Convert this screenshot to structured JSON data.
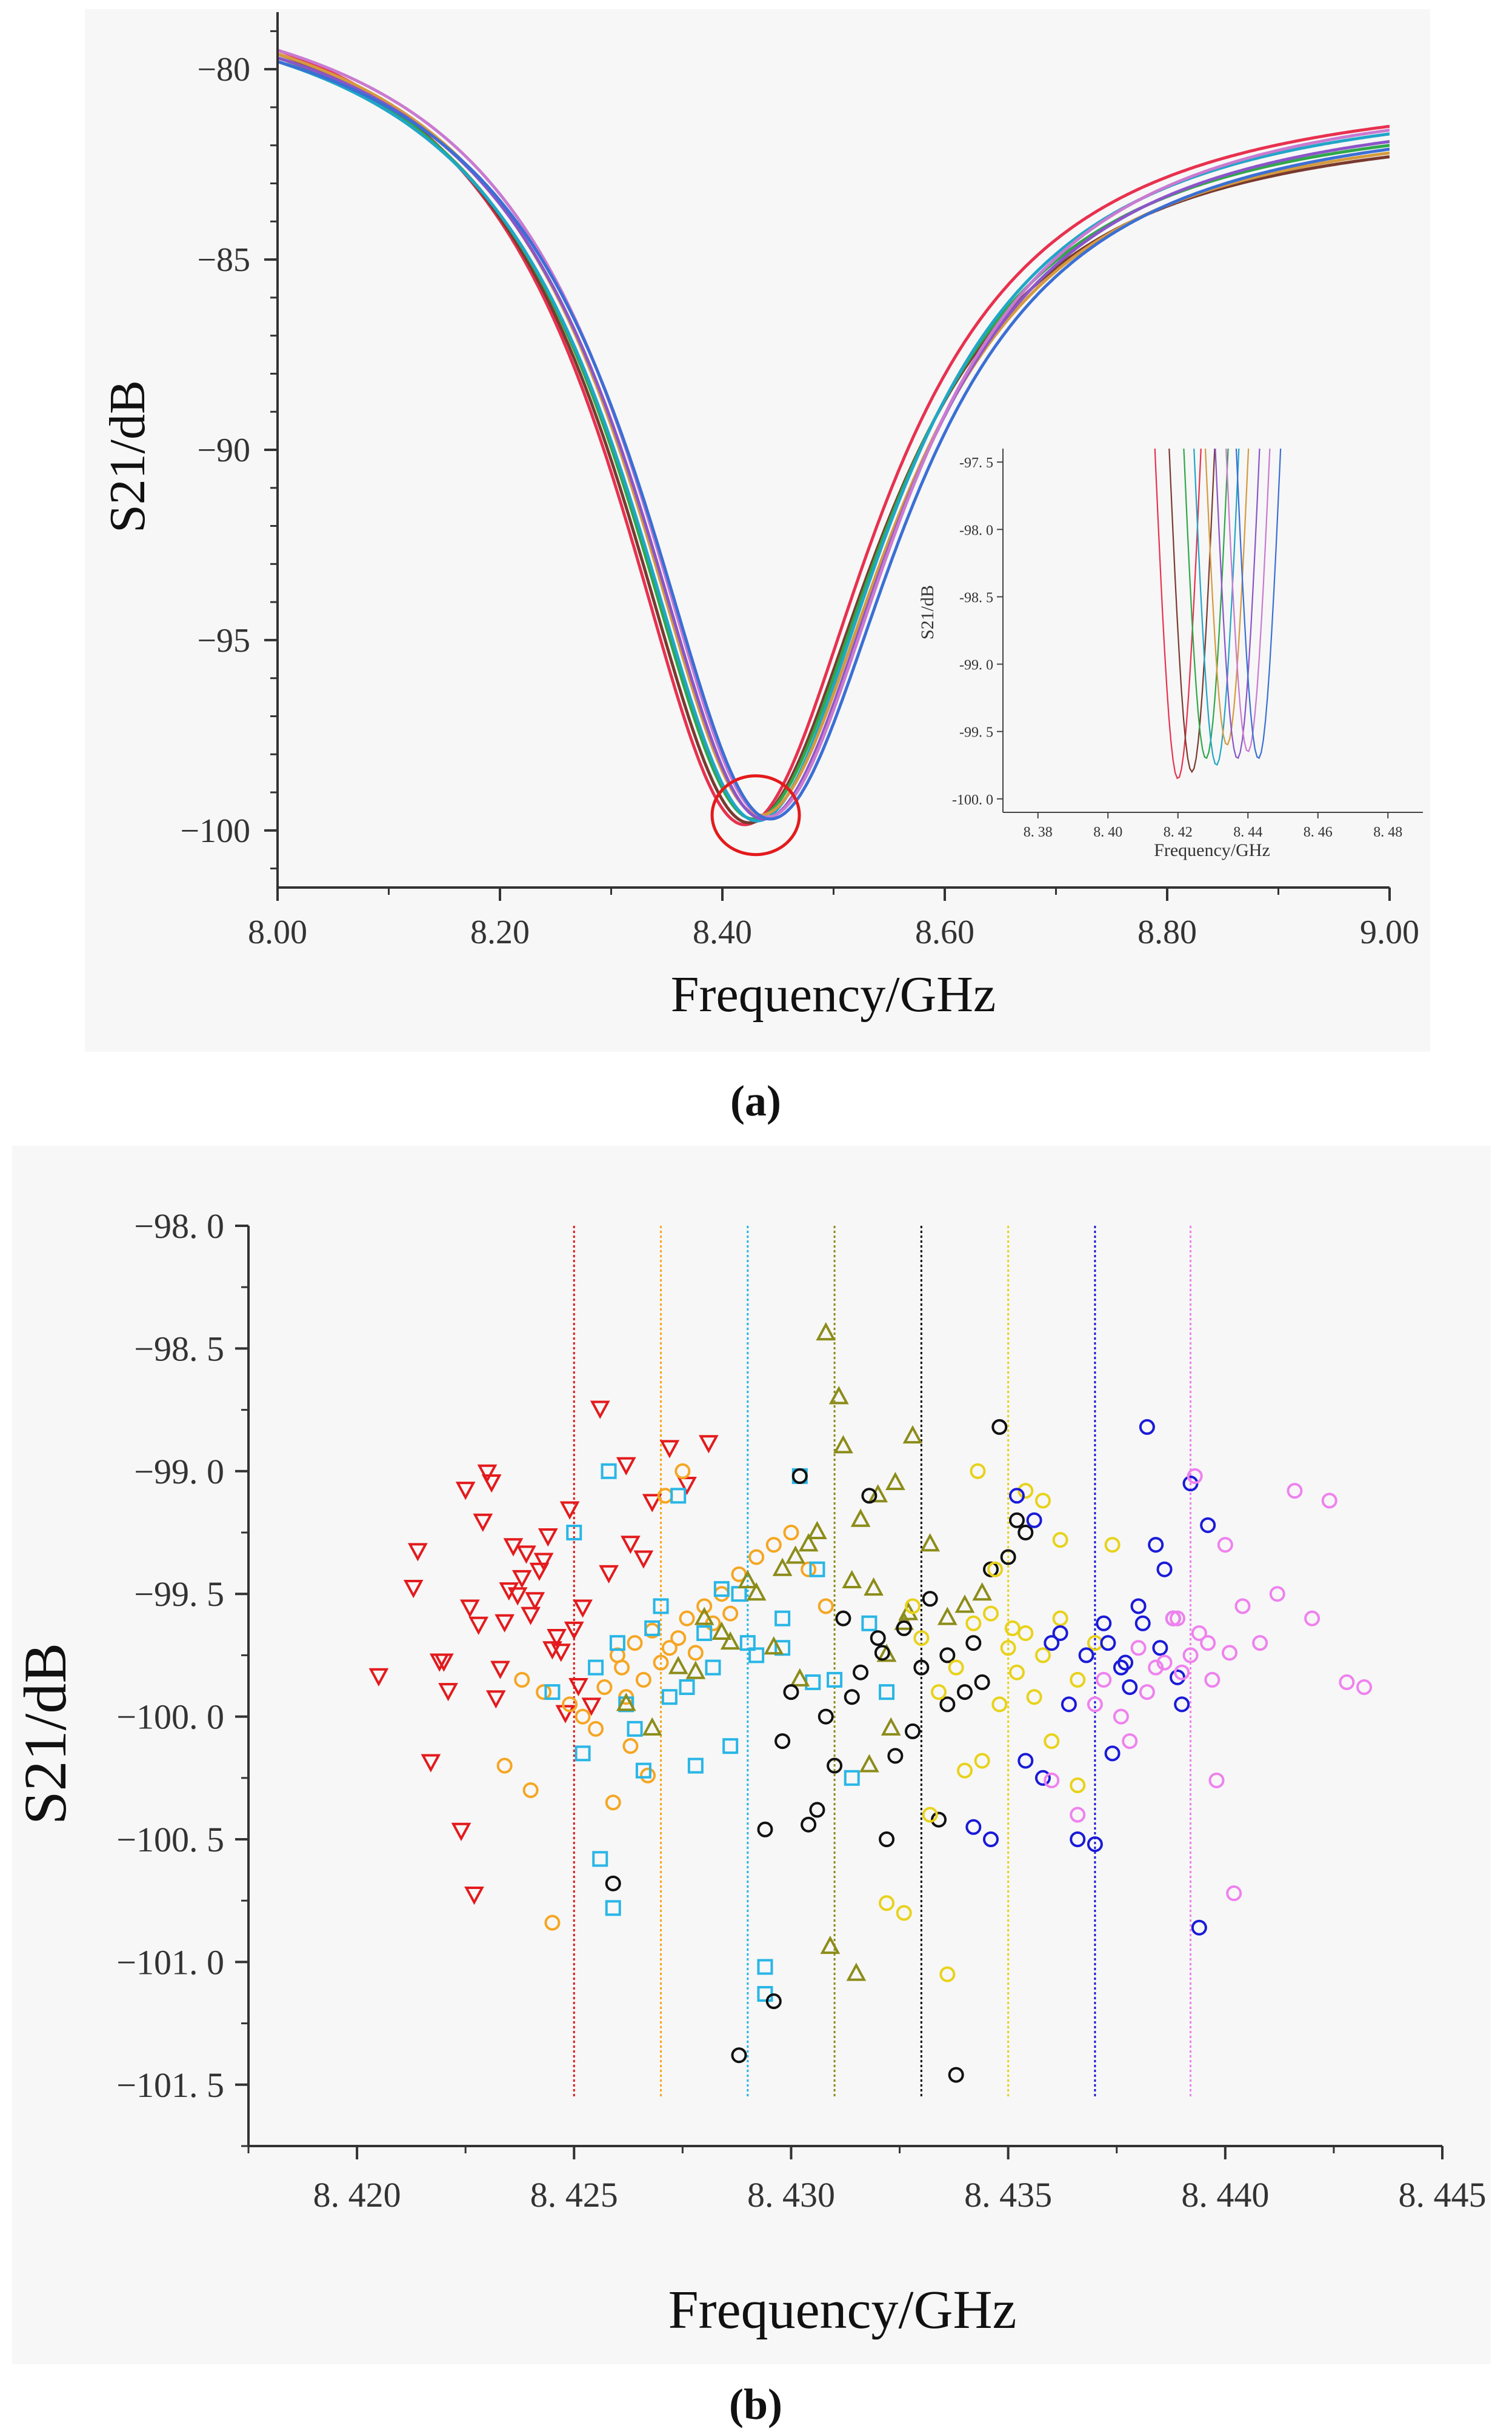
{
  "panel_labels": {
    "a": "(a)",
    "b": "(b)"
  },
  "chart_data": [
    {
      "id": "a",
      "type": "line",
      "xlabel": "Frequency/GHz",
      "ylabel": "S21/dB",
      "xlim": [
        8.0,
        9.0
      ],
      "ylim": [
        -101.5,
        -78.5
      ],
      "xticks": [
        8.0,
        8.2,
        8.4,
        8.6,
        8.8,
        9.0
      ],
      "xtick_labels": [
        "8.00",
        "8.20",
        "8.40",
        "8.60",
        "8.80",
        "9.00"
      ],
      "yticks": [
        -80,
        -85,
        -90,
        -95,
        -100
      ],
      "ytick_labels": [
        "−80",
        "−85",
        "−90",
        "−95",
        "−100"
      ],
      "annotation": {
        "type": "circle",
        "x": 8.43,
        "y": -99.6
      },
      "curve_model": {
        "gamma": 0.145,
        "edge": 8.0
      },
      "series": [
        {
          "color": "#e8314f",
          "x0": 8.42,
          "min": -99.85,
          "start": -79.5,
          "end": -81.5
        },
        {
          "color": "#7a3a2f",
          "x0": 8.424,
          "min": -99.8,
          "start": -79.6,
          "end": -82.3
        },
        {
          "color": "#2ea84a",
          "x0": 8.428,
          "min": -99.7,
          "start": -79.7,
          "end": -82.0
        },
        {
          "color": "#21a6c7",
          "x0": 8.431,
          "min": -99.75,
          "start": -79.8,
          "end": -81.7
        },
        {
          "color": "#d59a3f",
          "x0": 8.434,
          "min": -99.6,
          "start": -79.6,
          "end": -82.2
        },
        {
          "color": "#8b55c9",
          "x0": 8.437,
          "min": -99.7,
          "start": -79.7,
          "end": -81.9
        },
        {
          "color": "#c97ad0",
          "x0": 8.44,
          "min": -99.65,
          "start": -79.5,
          "end": -81.6
        },
        {
          "color": "#3b6fd4",
          "x0": 8.443,
          "min": -99.7,
          "start": -79.8,
          "end": -82.1
        }
      ],
      "inset": {
        "xlabel": "Frequency/GHz",
        "ylabel": "S21/dB",
        "xlim": [
          8.37,
          8.49
        ],
        "ylim": [
          -100.1,
          -97.4
        ],
        "xticks": [
          8.38,
          8.4,
          8.42,
          8.44,
          8.46,
          8.48
        ],
        "xtick_labels": [
          "8. 38",
          "8. 40",
          "8. 42",
          "8. 44",
          "8. 46",
          "8. 48"
        ],
        "yticks": [
          -97.5,
          -98.0,
          -98.5,
          -99.0,
          -99.5,
          -100.0
        ],
        "ytick_labels": [
          "-97. 5",
          "-98. 0",
          "-98. 5",
          "-99. 0",
          "-99. 5",
          "-100. 0"
        ],
        "curve_width": 0.013
      }
    },
    {
      "id": "b",
      "type": "scatter",
      "xlabel": "Frequency/GHz",
      "ylabel": "S21/dB",
      "xlim": [
        8.4175,
        8.445
      ],
      "ylim": [
        -101.75,
        -98.0
      ],
      "xticks": [
        8.42,
        8.425,
        8.43,
        8.435,
        8.44,
        8.445
      ],
      "xtick_labels": [
        "8. 420",
        "8. 425",
        "8. 430",
        "8. 435",
        "8. 440",
        "8. 445"
      ],
      "yticks": [
        -98.0,
        -98.5,
        -99.0,
        -99.5,
        -100.0,
        -100.5,
        -101.0,
        -101.5
      ],
      "ytick_labels": [
        "−98. 0",
        "−98. 5",
        "−99. 0",
        "−99. 5",
        "−100. 0",
        "−100. 5",
        "−101. 0",
        "−101. 5"
      ],
      "vlines": [
        {
          "x": 8.425,
          "color": "#e41a1c"
        },
        {
          "x": 8.427,
          "color": "#f5a623"
        },
        {
          "x": 8.429,
          "color": "#29b6e6"
        },
        {
          "x": 8.431,
          "color": "#8c8c1a"
        },
        {
          "x": 8.433,
          "color": "#111111"
        },
        {
          "x": 8.435,
          "color": "#e8d21a"
        },
        {
          "x": 8.437,
          "color": "#1a1ad8"
        },
        {
          "x": 8.4392,
          "color": "#ee82ee"
        }
      ],
      "series": [
        {
          "marker": "triangle-down",
          "color": "#e41a1c",
          "x": [
            8.4205,
            8.4213,
            8.422,
            8.4228,
            8.4232,
            8.424,
            8.4245,
            8.425,
            8.4243,
            8.4239,
            8.4236,
            8.4226,
            8.4214,
            8.4221,
            8.4219,
            8.423,
            8.4229,
            8.4235,
            8.4241,
            8.4246,
            8.4252,
            8.4258,
            8.4263,
            8.4268,
            8.4262,
            8.4256,
            8.4249,
            8.4244,
            8.4238,
            8.4234,
            8.4231,
            8.4247,
            8.4251,
            8.4254,
            8.4266,
            8.4272,
            8.4276,
            8.4281,
            8.4248,
            8.4225,
            8.4217,
            8.4224,
            8.4227,
            8.4233,
            8.4237,
            8.4242
          ],
          "y": [
            -99.83,
            -99.47,
            -99.77,
            -99.62,
            -99.92,
            -99.58,
            -99.72,
            -99.64,
            -99.36,
            -99.33,
            -99.3,
            -99.55,
            -99.32,
            -99.89,
            -99.77,
            -99.0,
            -99.2,
            -99.48,
            -99.52,
            -99.67,
            -99.55,
            -99.41,
            -99.29,
            -99.12,
            -98.97,
            -98.74,
            -99.15,
            -99.26,
            -99.43,
            -99.61,
            -99.04,
            -99.73,
            -99.87,
            -99.95,
            -99.35,
            -98.9,
            -99.05,
            -98.88,
            -99.98,
            -99.07,
            -100.18,
            -100.46,
            -100.72,
            -99.8,
            -99.5,
            -99.4
          ]
        },
        {
          "marker": "circle",
          "color": "#f5a623",
          "x": [
            8.4234,
            8.424,
            8.4245,
            8.4252,
            8.4257,
            8.426,
            8.4264,
            8.4268,
            8.4272,
            8.4276,
            8.428,
            8.4284,
            8.4288,
            8.4292,
            8.4296,
            8.43,
            8.4304,
            8.4308,
            8.4261,
            8.4266,
            8.427,
            8.4274,
            8.4278,
            8.4282,
            8.4286,
            8.4255,
            8.4249,
            8.4243,
            8.4238,
            8.4259,
            8.4263,
            8.4267,
            8.4271,
            8.4275,
            8.4262
          ],
          "y": [
            -100.2,
            -100.3,
            -100.84,
            -100.0,
            -99.88,
            -99.75,
            -99.7,
            -99.65,
            -99.72,
            -99.6,
            -99.55,
            -99.5,
            -99.42,
            -99.35,
            -99.3,
            -99.25,
            -99.4,
            -99.55,
            -99.8,
            -99.85,
            -99.78,
            -99.68,
            -99.74,
            -99.62,
            -99.58,
            -100.05,
            -99.95,
            -99.9,
            -99.85,
            -100.35,
            -100.12,
            -100.24,
            -99.1,
            -99.0,
            -99.92
          ]
        },
        {
          "marker": "square",
          "color": "#29b6e6",
          "x": [
            8.4245,
            8.425,
            8.4255,
            8.4258,
            8.4262,
            8.4266,
            8.427,
            8.4274,
            8.4278,
            8.4282,
            8.4286,
            8.429,
            8.4294,
            8.4298,
            8.4302,
            8.4306,
            8.431,
            8.4314,
            8.4318,
            8.4322,
            8.4292,
            8.4288,
            8.4284,
            8.428,
            8.4276,
            8.4272,
            8.4268,
            8.4264,
            8.426,
            8.4256,
            8.4252,
            8.4294,
            8.4298,
            8.4305,
            8.4259
          ],
          "y": [
            -99.9,
            -99.25,
            -99.8,
            -99.0,
            -99.95,
            -100.22,
            -99.55,
            -99.1,
            -100.2,
            -99.8,
            -100.12,
            -99.7,
            -101.02,
            -99.6,
            -99.02,
            -99.4,
            -99.85,
            -100.25,
            -99.62,
            -99.9,
            -99.75,
            -99.5,
            -99.48,
            -99.66,
            -99.88,
            -99.92,
            -99.64,
            -100.05,
            -99.7,
            -100.58,
            -100.15,
            -101.13,
            -99.72,
            -99.86,
            -100.78
          ]
        },
        {
          "marker": "triangle-up",
          "color": "#8c8c1a",
          "x": [
            8.4262,
            8.4268,
            8.4274,
            8.428,
            8.4286,
            8.4292,
            8.4298,
            8.4304,
            8.4308,
            8.4312,
            8.4316,
            8.432,
            8.4324,
            8.4328,
            8.4332,
            8.4336,
            8.434,
            8.4344,
            8.4309,
            8.4315,
            8.4318,
            8.4322,
            8.4326,
            8.4302,
            8.4296,
            8.429,
            8.4284,
            8.4278,
            8.4301,
            8.4306,
            8.4311,
            8.4314,
            8.4319,
            8.4323,
            8.4327
          ],
          "y": [
            -99.95,
            -100.05,
            -99.8,
            -99.6,
            -99.7,
            -99.5,
            -99.4,
            -99.3,
            -98.44,
            -98.9,
            -99.2,
            -99.1,
            -99.05,
            -98.86,
            -99.3,
            -99.6,
            -99.55,
            -99.5,
            -100.94,
            -101.05,
            -100.2,
            -99.75,
            -99.62,
            -99.85,
            -99.72,
            -99.45,
            -99.66,
            -99.82,
            -99.35,
            -99.25,
            -98.7,
            -99.45,
            -99.48,
            -100.05,
            -99.58
          ]
        },
        {
          "marker": "circle",
          "color": "#111111",
          "x": [
            8.4259,
            8.4288,
            8.4294,
            8.4298,
            8.4302,
            8.4306,
            8.431,
            8.4314,
            8.4318,
            8.4322,
            8.4326,
            8.433,
            8.4334,
            8.4338,
            8.4342,
            8.4346,
            8.435,
            8.4354,
            8.4296,
            8.43,
            8.4304,
            8.4308,
            8.4312,
            8.4316,
            8.432,
            8.4324,
            8.4328,
            8.4332,
            8.4336,
            8.434,
            8.4344,
            8.4348,
            8.4352,
            8.4336,
            8.4321
          ],
          "y": [
            -100.68,
            -101.38,
            -100.46,
            -100.1,
            -99.02,
            -100.38,
            -100.2,
            -99.92,
            -99.1,
            -100.5,
            -99.64,
            -99.8,
            -100.42,
            -101.46,
            -99.7,
            -99.4,
            -99.35,
            -99.25,
            -101.16,
            -99.9,
            -100.44,
            -100.0,
            -99.6,
            -99.82,
            -99.68,
            -100.16,
            -100.06,
            -99.52,
            -99.75,
            -99.9,
            -99.86,
            -98.82,
            -99.2,
            -99.95,
            -99.74
          ]
        },
        {
          "marker": "circle",
          "color": "#e8d21a",
          "x": [
            8.4322,
            8.4328,
            8.4334,
            8.4338,
            8.4342,
            8.4346,
            8.435,
            8.4354,
            8.4358,
            8.4362,
            8.4366,
            8.437,
            8.4374,
            8.4336,
            8.434,
            8.4344,
            8.4348,
            8.4352,
            8.4356,
            8.436,
            8.4332,
            8.4326,
            8.433,
            8.4354,
            8.4358,
            8.4362,
            8.4366,
            8.4343,
            8.4347,
            8.4351
          ],
          "y": [
            -100.76,
            -99.55,
            -99.9,
            -99.8,
            -99.62,
            -99.58,
            -99.72,
            -99.66,
            -99.75,
            -99.6,
            -99.85,
            -99.7,
            -99.3,
            -101.05,
            -100.22,
            -100.18,
            -99.95,
            -99.82,
            -99.92,
            -100.1,
            -100.4,
            -100.8,
            -99.68,
            -99.08,
            -99.12,
            -99.28,
            -100.28,
            -99.0,
            -99.4,
            -99.64
          ]
        },
        {
          "marker": "circle",
          "color": "#1a1ad8",
          "x": [
            8.4342,
            8.4346,
            8.4352,
            8.4356,
            8.436,
            8.4364,
            8.4368,
            8.4372,
            8.4376,
            8.438,
            8.4384,
            8.4388,
            8.4392,
            8.4396,
            8.4366,
            8.437,
            8.4374,
            8.4378,
            8.4362,
            8.4358,
            8.4354,
            8.4382,
            8.4386,
            8.439,
            8.4394,
            8.4373,
            8.4377,
            8.4381,
            8.4385,
            8.4389
          ],
          "y": [
            -100.45,
            -100.5,
            -99.1,
            -99.2,
            -99.7,
            -99.95,
            -99.75,
            -99.62,
            -99.8,
            -99.55,
            -99.3,
            -99.6,
            -99.05,
            -99.22,
            -100.5,
            -100.52,
            -100.15,
            -99.88,
            -99.66,
            -100.25,
            -100.18,
            -98.82,
            -99.4,
            -99.95,
            -100.86,
            -99.7,
            -99.78,
            -99.62,
            -99.72,
            -99.84
          ],
          "note": ""
        },
        {
          "marker": "circle",
          "color": "#ee82ee",
          "x": [
            8.436,
            8.4366,
            8.4372,
            8.4378,
            8.4384,
            8.4388,
            8.4392,
            8.4396,
            8.44,
            8.4404,
            8.4408,
            8.4412,
            8.4416,
            8.442,
            8.4424,
            8.4428,
            8.4432,
            8.4386,
            8.439,
            8.4394,
            8.4398,
            8.4402,
            8.4382,
            8.4376,
            8.437,
            8.438,
            8.4389,
            8.4393,
            8.4397,
            8.4401
          ],
          "y": [
            -100.26,
            -100.4,
            -99.85,
            -100.1,
            -99.8,
            -99.6,
            -99.75,
            -99.7,
            -99.3,
            -99.55,
            -99.7,
            -99.5,
            -99.08,
            -99.6,
            -99.12,
            -99.86,
            -99.88,
            -99.78,
            -99.82,
            -99.66,
            -100.26,
            -100.72,
            -99.9,
            -100.0,
            -99.95,
            -99.72,
            -99.6,
            -99.02,
            -99.85,
            -99.74
          ]
        }
      ]
    }
  ]
}
